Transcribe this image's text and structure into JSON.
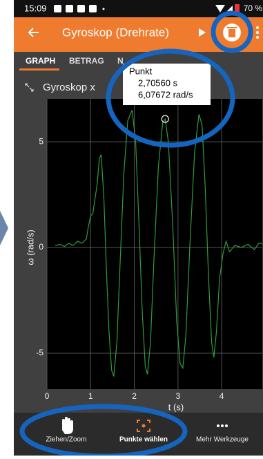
{
  "status_bar": {
    "time": "15:09",
    "battery": "70 %"
  },
  "app_bar": {
    "title": "Gyroskop (Drehrate)"
  },
  "tabs": [
    "GRAPH",
    "BETRAG",
    "N"
  ],
  "graph": {
    "title": "Gyroskop x"
  },
  "popup": {
    "title": "Punkt",
    "x": "2,70560 s",
    "y": "6,07672 rad/s"
  },
  "chart_data": {
    "type": "line",
    "x_label": "t (s)",
    "y_label": "ω (rad/s)",
    "color": "#2e9e3a",
    "grid": true,
    "xlim": [
      0,
      4.93
    ],
    "ylim": [
      -6.7,
      7.03
    ],
    "xticks": [
      0,
      1,
      2,
      3,
      4
    ],
    "yticks": [
      -5,
      0,
      5
    ],
    "selected_point": 34,
    "x": [
      0.19,
      0.3,
      0.4,
      0.5,
      0.6,
      0.7,
      0.8,
      0.9,
      0.95,
      1.0,
      1.05,
      1.1,
      1.15,
      1.2,
      1.24,
      1.3,
      1.36,
      1.42,
      1.48,
      1.53,
      1.6,
      1.68,
      1.76,
      1.85,
      1.95,
      2.03,
      2.1,
      2.18,
      2.25,
      2.3,
      2.37,
      2.45,
      2.55,
      2.65,
      2.7056,
      2.78,
      2.88,
      2.97,
      3.05,
      3.11,
      3.18,
      3.27,
      3.38,
      3.48,
      3.55,
      3.62,
      3.7,
      3.77,
      3.82,
      3.88,
      3.95,
      4.03,
      4.1,
      4.18,
      4.3,
      4.45,
      4.6,
      4.75,
      4.85,
      4.93
    ],
    "values": [
      0.1,
      0.15,
      0.05,
      0.2,
      0.1,
      0.3,
      0.2,
      0.4,
      1.0,
      1.5,
      1.6,
      2.3,
      3.0,
      4.2,
      4.4,
      2.5,
      -1.0,
      -4.0,
      -5.8,
      -6.1,
      -4.5,
      -0.5,
      3.5,
      6.0,
      6.5,
      5.0,
      1.5,
      -3.0,
      -5.6,
      -6.0,
      -4.5,
      -0.5,
      3.8,
      5.9,
      6.07672,
      5.0,
      1.0,
      -3.5,
      -5.5,
      -5.7,
      -4.2,
      0.0,
      4.5,
      6.3,
      5.8,
      3.0,
      -1.5,
      -4.5,
      -5.2,
      -4.0,
      -1.5,
      -0.3,
      0.3,
      -0.2,
      0.1,
      0.0,
      0.15,
      -0.1,
      0.2,
      0.2
    ]
  },
  "toolbar": {
    "items": [
      "Ziehen/Zoom",
      "Punkte wählen",
      "Mehr Werkzeuge"
    ]
  }
}
